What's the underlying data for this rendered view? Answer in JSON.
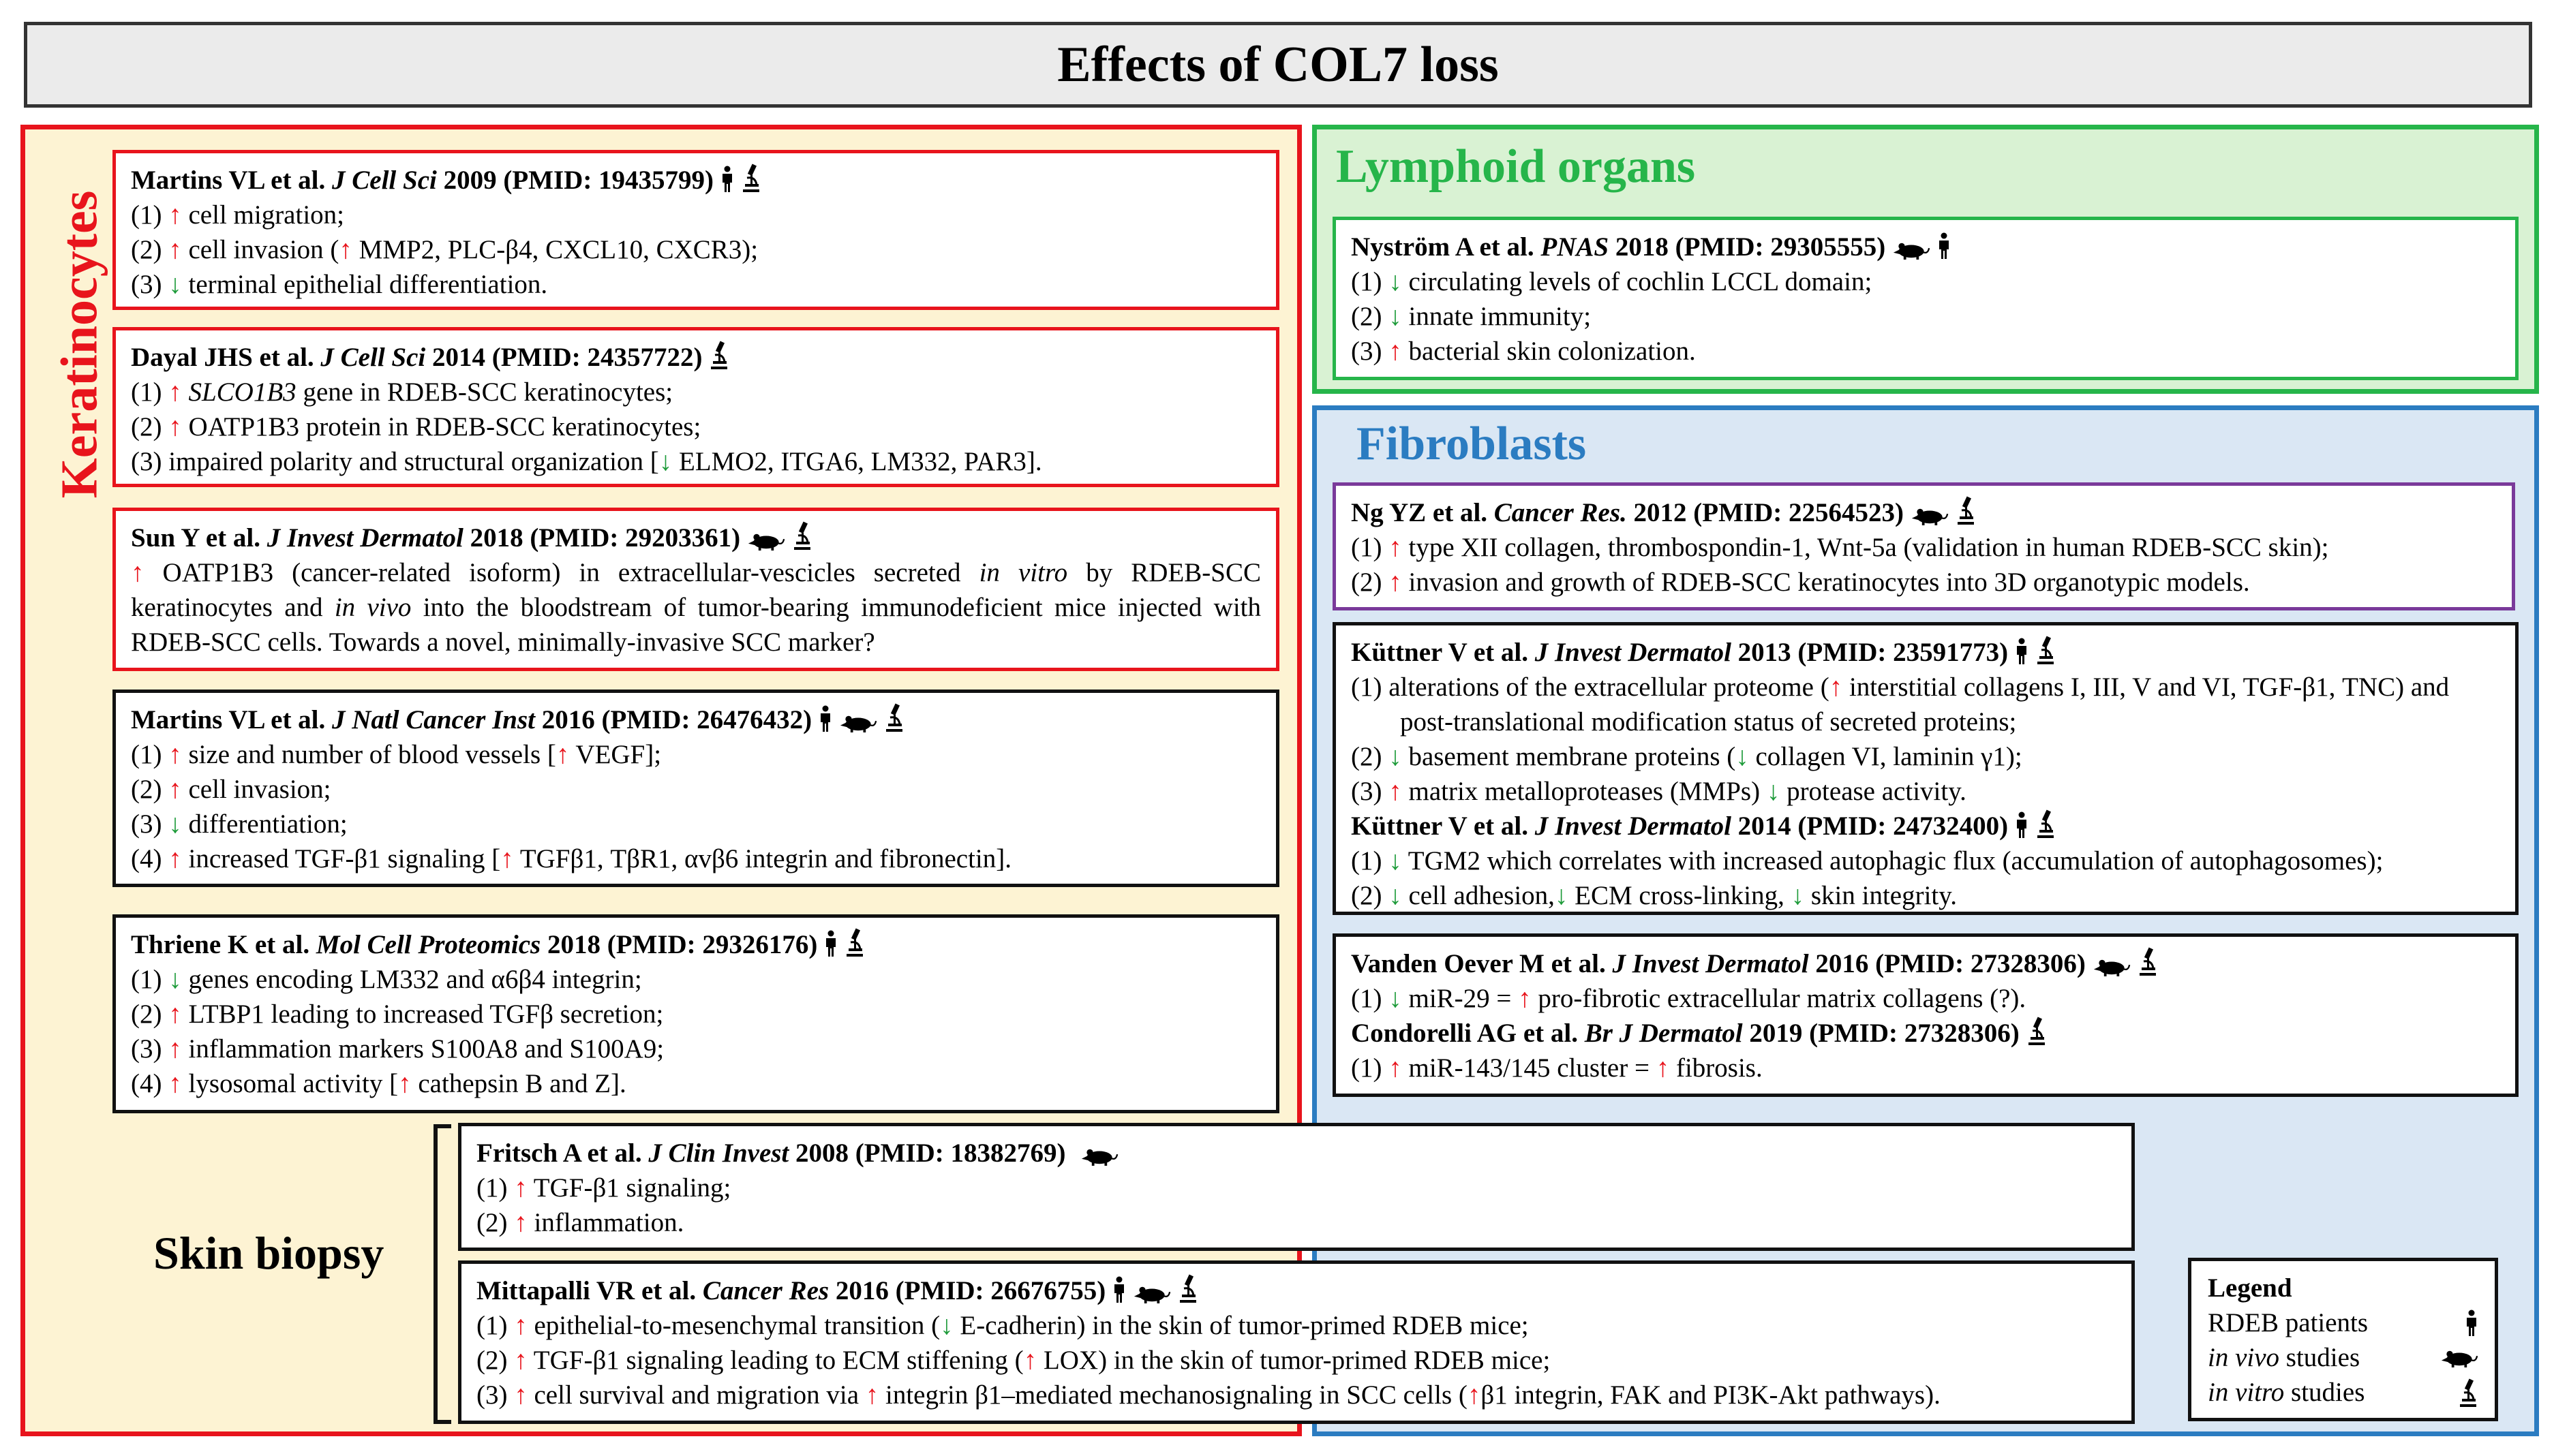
{
  "title": "Effects of COL7 loss",
  "sections": {
    "keratinocytes": "Keratinocytes",
    "lymphoid": "Lymphoid organs",
    "fibroblasts": "Fibroblasts",
    "skin_biopsy": "Skin biopsy"
  },
  "colors": {
    "red": "#e8141c",
    "green": "#26b54a",
    "blue": "#2b7cc1",
    "purple": "#7a3a9a",
    "arrow_up": "#e8141c",
    "arrow_down": "#1e9b3a"
  },
  "icons": {
    "patient": "person-icon",
    "in_vivo": "mouse-icon",
    "in_vitro": "microscope-icon"
  },
  "arrows": {
    "up": "↑",
    "down": "↓"
  },
  "kera1": {
    "authors": "Martins VL et al.",
    "journal": "J Cell Sci",
    "rest": "2009 (PMID: 19435799)",
    "l1a": "(1) ",
    "l1b": "cell migration;",
    "l2a": "(2) ",
    "l2b": "cell invasion (",
    "l2c": "MMP2, PLC-β4, CXCL10, CXCR3);",
    "l3a": "(3) ",
    "l3b": "terminal epithelial differentiation."
  },
  "kera2": {
    "authors": "Dayal JHS et al.",
    "journal": "J Cell Sci",
    "rest": "2014 (PMID: 24357722)",
    "l1a": "(1) ",
    "l1g": "SLCO1B3",
    "l1b": " gene in RDEB-SCC keratinocytes;",
    "l2a": "(2) ",
    "l2b": "OATP1B3 protein in RDEB-SCC keratinocytes;",
    "l3a": "(3) impaired polarity and structural organization [",
    "l3b": "ELMO2, ITGA6, LM332, PAR3]."
  },
  "kera3": {
    "authors": "Sun Y et al.",
    "journal": "J Invest Dermatol",
    "rest": "2018 (PMID: 29203361)",
    "t1": "OATP1B3 (cancer-related isoform) in extracellular-vescicles secreted ",
    "t2": "in vitro",
    "t3": " by RDEB-SCC keratinocytes and ",
    "t4": "in vivo",
    "t5": " into the bloodstream of tumor-bearing immunodeficient mice injected with RDEB-SCC cells. Towards a novel, minimally-invasive SCC marker?"
  },
  "kera4": {
    "authors": "Martins VL et al.",
    "journal": "J Natl Cancer Inst",
    "rest": "2016 (PMID: 26476432)",
    "l1a": "(1) ",
    "l1b": "size and number of blood vessels [",
    "l1c": "VEGF];",
    "l2a": "(2) ",
    "l2b": "cell invasion;",
    "l3a": "(3) ",
    "l3b": "differentiation;",
    "l4a": "(4) ",
    "l4b": "increased TGF-β1 signaling [",
    "l4c": "TGFβ1, TβR1, αvβ6 integrin and fibronectin]."
  },
  "kera5": {
    "authors": "Thriene K et al.",
    "journal": "Mol Cell Proteomics",
    "rest": "2018 (PMID: 29326176)",
    "l1a": "(1) ",
    "l1b": "genes encoding LM332 and α6β4 integrin;",
    "l2a": "(2) ",
    "l2b": " LTBP1 leading to increased TGFβ secretion;",
    "l3a": "(3) ",
    "l3b": " inflammation markers S100A8 and S100A9;",
    "l4a": "(4) ",
    "l4b": " lysosomal activity [",
    "l4c": "cathepsin B and Z]."
  },
  "lymph1": {
    "authors": "Nyström A et al.",
    "journal": "PNAS",
    "rest": "2018 (PMID: 29305555)",
    "l1a": "(1) ",
    "l1b": "circulating levels of cochlin LCCL domain;",
    "l2a": "(2) ",
    "l2b": "innate immunity;",
    "l3a": "(3) ",
    "l3b": "bacterial skin colonization."
  },
  "fibro1": {
    "authors": "Ng YZ et al.",
    "journal": "Cancer Res.",
    "rest": "2012  (PMID: 22564523)",
    "l1a": "(1) ",
    "l1b": "type XII collagen, thrombospondin-1, Wnt-5a (validation in human RDEB-SCC skin);",
    "l2a": "(2) ",
    "l2b": "invasion and growth of RDEB-SCC keratinocytes into 3D organotypic models."
  },
  "fibro2": {
    "authors": "Küttner V et al.",
    "journal": "J Invest Dermatol",
    "rest": "2013 (PMID: 23591773)",
    "l1a": "(1)  alterations of the extracellular proteome (",
    "l1b": "interstitial collagens I, III, V and VI, TGF-β1, TNC) and post-translational modification status of secreted proteins;",
    "l2a": "(2) ",
    "l2b": "basement membrane proteins (",
    "l2c": "collagen VI, laminin γ1);",
    "l3a": "(3) ",
    "l3b": "matrix metalloproteases (MMPs) ",
    "l3c": "protease activity.",
    "authors2": "Küttner V et al.",
    "journal2": "J Invest Dermatol",
    "rest2": "2014 (PMID: 24732400)",
    "m1a": "(1) ",
    "m1b": "TGM2 which correlates with increased autophagic flux (accumulation of autophagosomes);",
    "m2a": "(2) ",
    "m2b": "cell adhesion,",
    "m2c": "ECM cross-linking, ",
    "m2d": "skin integrity."
  },
  "fibro3": {
    "authors": "Vanden Oever M et al.",
    "journal": "J Invest Dermatol",
    "rest": "2016 (PMID: 27328306)",
    "l1a": "(1) ",
    "l1b": "miR-29 = ",
    "l1c": "pro-fibrotic extracellular matrix collagens (?).",
    "authors2": "Condorelli AG et al.",
    "journal2": "Br J Dermatol",
    "rest2": "2019 (PMID: 27328306)",
    "m1a": "(1) ",
    "m1b": "miR-143/145 cluster = ",
    "m1c": "fibrosis."
  },
  "skin1": {
    "authors": "Fritsch A et al.",
    "journal": "J Clin Invest",
    "rest": "2008 (PMID: 18382769)",
    "l1a": "(1) ",
    "l1b": "TGF-β1 signaling;",
    "l2a": "(2) ",
    "l2b": "inflammation."
  },
  "skin2": {
    "authors": "Mittapalli VR et al.",
    "journal": "Cancer Res",
    "rest": "2016 (PMID: 26676755)",
    "l1a": "(1) ",
    "l1b": "epithelial-to-mesenchymal transition (",
    "l1c": "E-cadherin) in the skin of tumor-primed RDEB mice;",
    "l2a": "(2) ",
    "l2b": "TGF-β1 signaling leading to ECM stiffening (",
    "l2c": "LOX) in the skin of tumor-primed RDEB mice;",
    "l3a": "(3) ",
    "l3b": "cell survival and migration via ",
    "l3c": "integrin β1–mediated mechanosignaling in SCC cells (",
    "l3d": "β1 integrin, FAK and PI3K-Akt pathways)."
  },
  "legend": {
    "title": "Legend",
    "patients": "RDEB patients",
    "in_vivo": "in vivo",
    "in_vitro": "in vitro",
    "studies": " studies"
  }
}
